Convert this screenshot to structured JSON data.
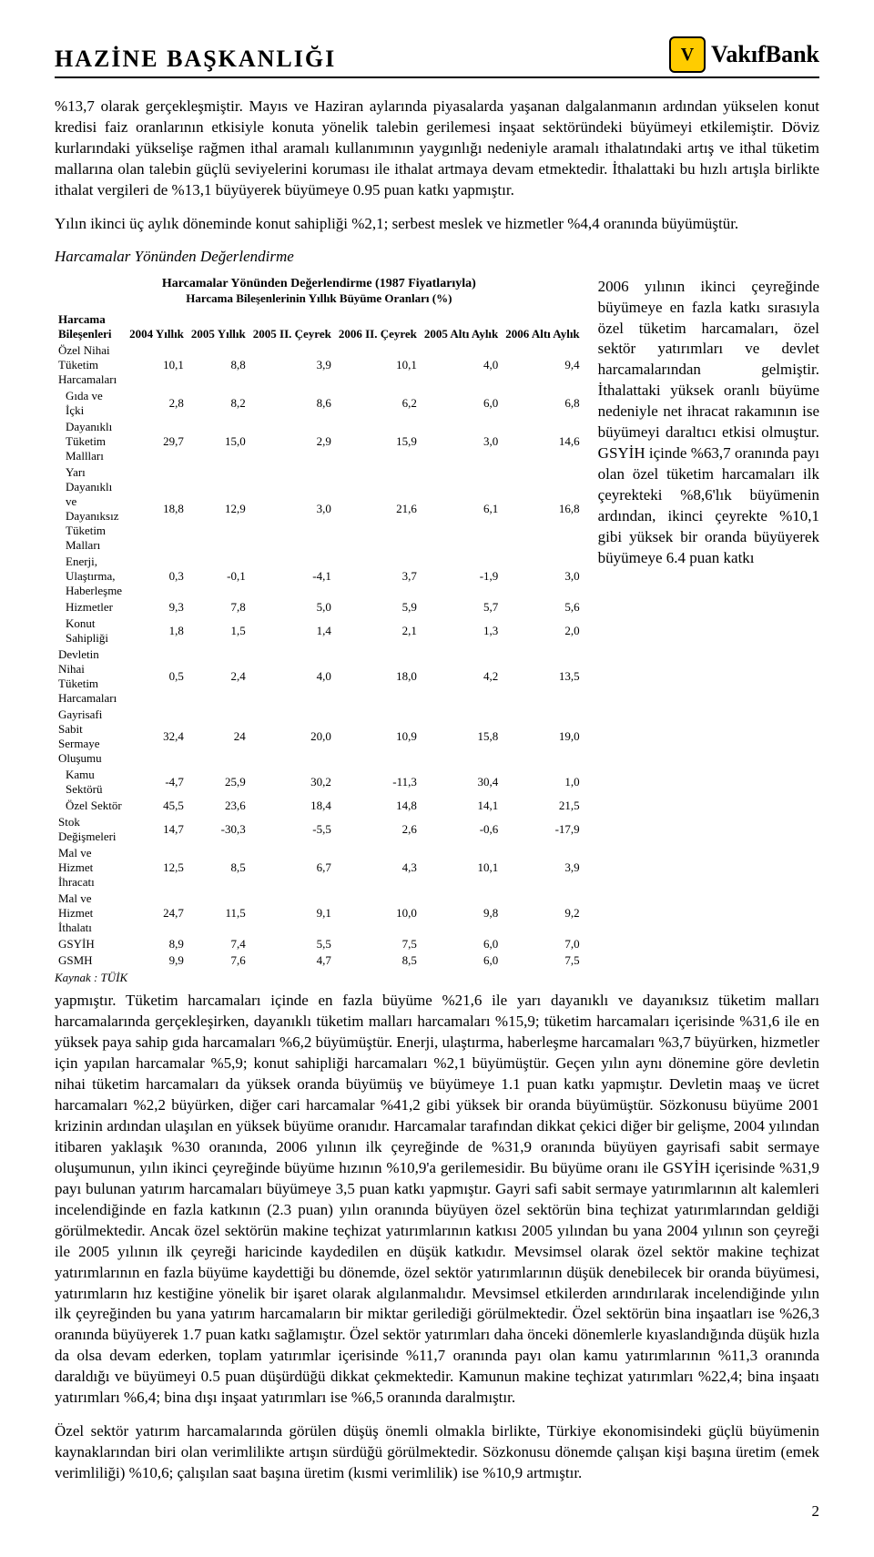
{
  "header": {
    "title": "HAZİNE  BAŞKANLIĞI",
    "brand_letter": "V",
    "brand_name": "VakıfBank"
  },
  "para1": "%13,7 olarak gerçekleşmiştir. Mayıs ve Haziran aylarında piyasalarda yaşanan dalgalanmanın ardından yükselen konut kredisi faiz oranlarının etkisiyle konuta yönelik talebin gerilemesi inşaat sektöründeki büyümeyi etkilemiştir. Döviz kurlarındaki yükselişe rağmen ithal aramalı kullanımının yaygınlığı nedeniyle aramalı ithalatındaki artış ve ithal tüketim mallarına olan talebin güçlü seviyelerini koruması ile ithalat artmaya devam etmektedir. İthalattaki bu hızlı artışla birlikte ithalat vergileri de %13,1 büyüyerek büyümeye 0.95 puan katkı yapmıştır.",
  "para2": "Yılın ikinci üç aylık döneminde konut sahipliği %2,1; serbest meslek ve hizmetler %4,4 oranında büyümüştür.",
  "section_sub": "Harcamalar Yönünden Değerlendirme",
  "table": {
    "title": "Harcamalar Yönünden Değerlendirme (1987 Fiyatlarıyla)",
    "subtitle": "Harcama Bileşenlerinin Yıllık Büyüme Oranları (%)",
    "row_header": "Harcama Bileşenleri",
    "columns": [
      "2004 Yıllık",
      "2005 Yıllık",
      "2005 II. Çeyrek",
      "2006 II. Çeyrek",
      "2005 Altı Aylık",
      "2006 Altı Aylık"
    ],
    "rows": [
      {
        "label": "Özel Nihai Tüketim Harcamaları",
        "indent": 0,
        "v": [
          "10,1",
          "8,8",
          "3,9",
          "10,1",
          "4,0",
          "9,4"
        ]
      },
      {
        "label": "Gıda ve İçki",
        "indent": 1,
        "v": [
          "2,8",
          "8,2",
          "8,6",
          "6,2",
          "6,0",
          "6,8"
        ]
      },
      {
        "label": "Dayanıklı Tüketim Mallları",
        "indent": 1,
        "v": [
          "29,7",
          "15,0",
          "2,9",
          "15,9",
          "3,0",
          "14,6"
        ]
      },
      {
        "label": "Yarı Dayanıklı ve Dayanıksız Tüketim Malları",
        "indent": 1,
        "v": [
          "18,8",
          "12,9",
          "3,0",
          "21,6",
          "6,1",
          "16,8"
        ]
      },
      {
        "label": "Enerji, Ulaştırma, Haberleşme",
        "indent": 1,
        "v": [
          "0,3",
          "-0,1",
          "-4,1",
          "3,7",
          "-1,9",
          "3,0"
        ]
      },
      {
        "label": "Hizmetler",
        "indent": 1,
        "v": [
          "9,3",
          "7,8",
          "5,0",
          "5,9",
          "5,7",
          "5,6"
        ]
      },
      {
        "label": "Konut Sahipliği",
        "indent": 1,
        "v": [
          "1,8",
          "1,5",
          "1,4",
          "2,1",
          "1,3",
          "2,0"
        ]
      },
      {
        "label": "Devletin Nihai Tüketim Harcamaları",
        "indent": 0,
        "v": [
          "0,5",
          "2,4",
          "4,0",
          "18,0",
          "4,2",
          "13,5"
        ]
      },
      {
        "label": "Gayrisafi Sabit Sermaye Oluşumu",
        "indent": 0,
        "v": [
          "32,4",
          "24",
          "20,0",
          "10,9",
          "15,8",
          "19,0"
        ]
      },
      {
        "label": "Kamu Sektörü",
        "indent": 1,
        "v": [
          "-4,7",
          "25,9",
          "30,2",
          "-11,3",
          "30,4",
          "1,0"
        ]
      },
      {
        "label": "Özel Sektör",
        "indent": 1,
        "v": [
          "45,5",
          "23,6",
          "18,4",
          "14,8",
          "14,1",
          "21,5"
        ]
      },
      {
        "label": "Stok Değişmeleri",
        "indent": 0,
        "v": [
          "14,7",
          "-30,3",
          "-5,5",
          "2,6",
          "-0,6",
          "-17,9"
        ]
      },
      {
        "label": "Mal ve Hizmet İhracatı",
        "indent": 0,
        "v": [
          "12,5",
          "8,5",
          "6,7",
          "4,3",
          "10,1",
          "3,9"
        ]
      },
      {
        "label": "Mal ve Hizmet İthalatı",
        "indent": 0,
        "v": [
          "24,7",
          "11,5",
          "9,1",
          "10,0",
          "9,8",
          "9,2"
        ]
      },
      {
        "label": "GSYİH",
        "indent": 0,
        "v": [
          "8,9",
          "7,4",
          "5,5",
          "7,5",
          "6,0",
          "7,0"
        ]
      },
      {
        "label": "GSMH",
        "indent": 0,
        "v": [
          "9,9",
          "7,6",
          "4,7",
          "8,5",
          "6,0",
          "7,5"
        ]
      }
    ],
    "source": "Kaynak : TÜİK"
  },
  "side_text": "2006 yılının ikinci çeyreğinde büyümeye en fazla katkı sırasıyla özel tüketim harcamaları, özel sektör yatırımları ve devlet harcamalarından gelmiştir. İthalattaki yüksek oranlı büyüme nedeniyle net ihracat rakamının ise büyümeyi daraltıcı etkisi olmuştur. GSYİH içinde %63,7 oranında payı olan özel tüketim harcamaları ilk çeyrekteki %8,6'lık büyümenin ardından, ikinci çeyrekte %10,1 gibi yüksek bir oranda büyüyerek büyümeye 6.4 puan katkı",
  "continuation": "yapmıştır. Tüketim harcamaları içinde en fazla büyüme %21,6 ile yarı dayanıklı ve dayanıksız tüketim malları harcamalarında gerçekleşirken, dayanıklı tüketim malları harcamaları %15,9; tüketim harcamaları içerisinde %31,6 ile en yüksek paya sahip gıda harcamaları %6,2 büyümüştür. Enerji, ulaştırma, haberleşme harcamaları %3,7 büyürken, hizmetler için yapılan harcamalar %5,9; konut sahipliği harcamaları %2,1 büyümüştür. Geçen yılın aynı dönemine göre devletin nihai tüketim harcamaları da yüksek oranda büyümüş ve büyümeye 1.1 puan katkı yapmıştır. Devletin maaş ve ücret harcamaları %2,2 büyürken, diğer cari harcamalar %41,2 gibi yüksek bir oranda büyümüştür.  Sözkonusu büyüme 2001 krizinin ardından ulaşılan en yüksek büyüme oranıdır. Harcamalar tarafından dikkat çekici diğer bir gelişme, 2004 yılından itibaren yaklaşık %30 oranında, 2006 yılının ilk çeyreğinde de %31,9 oranında büyüyen gayrisafi sabit sermaye oluşumunun, yılın ikinci çeyreğinde büyüme hızının %10,9'a gerilemesidir. Bu büyüme oranı ile GSYİH içerisinde %31,9 payı bulunan yatırım harcamaları büyümeye 3,5 puan katkı yapmıştır. Gayri safi sabit sermaye yatırımlarının alt kalemleri incelendiğinde en fazla katkının (2.3 puan) yılın oranında büyüyen özel sektörün bina teçhizat yatırımlarından geldiği görülmektedir. Ancak özel sektörün makine teçhizat yatırımlarının katkısı 2005 yılından bu yana 2004 yılının son çeyreği ile 2005 yılının ilk çeyreği haricinde kaydedilen en düşük katkıdır. Mevsimsel olarak özel sektör makine teçhizat yatırımlarının en fazla büyüme kaydettiği bu dönemde, özel sektör yatırımlarının düşük denebilecek bir oranda büyümesi, yatırımların hız kestiğine yönelik bir işaret olarak algılanmalıdır. Mevsimsel etkilerden arındırılarak incelendiğinde yılın ilk çeyreğinden bu yana yatırım harcamaların bir miktar gerilediği görülmektedir. Özel sektörün bina inşaatları ise %26,3 oranında büyüyerek 1.7 puan katkı sağlamıştır. Özel sektör yatırımları daha önceki dönemlerle kıyaslandığında düşük hızla da olsa devam ederken, toplam yatırımlar içerisinde %11,7 oranında payı olan kamu yatırımlarının %11,3 oranında daraldığı ve büyümeyi 0.5 puan düşürdüğü dikkat çekmektedir. Kamunun makine teçhizat yatırımları %22,4; bina inşaatı yatırımları %6,4; bina dışı inşaat yatırımları ise %6,5 oranında daralmıştır.",
  "para3": "Özel sektör yatırım harcamalarında görülen düşüş önemli olmakla birlikte, Türkiye ekonomisindeki güçlü büyümenin kaynaklarından biri olan verimlilikte artışın sürdüğü görülmektedir. Sözkonusu dönemde çalışan kişi başına üretim (emek verimliliği) %10,6; çalışılan saat başına üretim (kısmi verimlilik) ise %10,9 artmıştır.",
  "page_num": "2"
}
